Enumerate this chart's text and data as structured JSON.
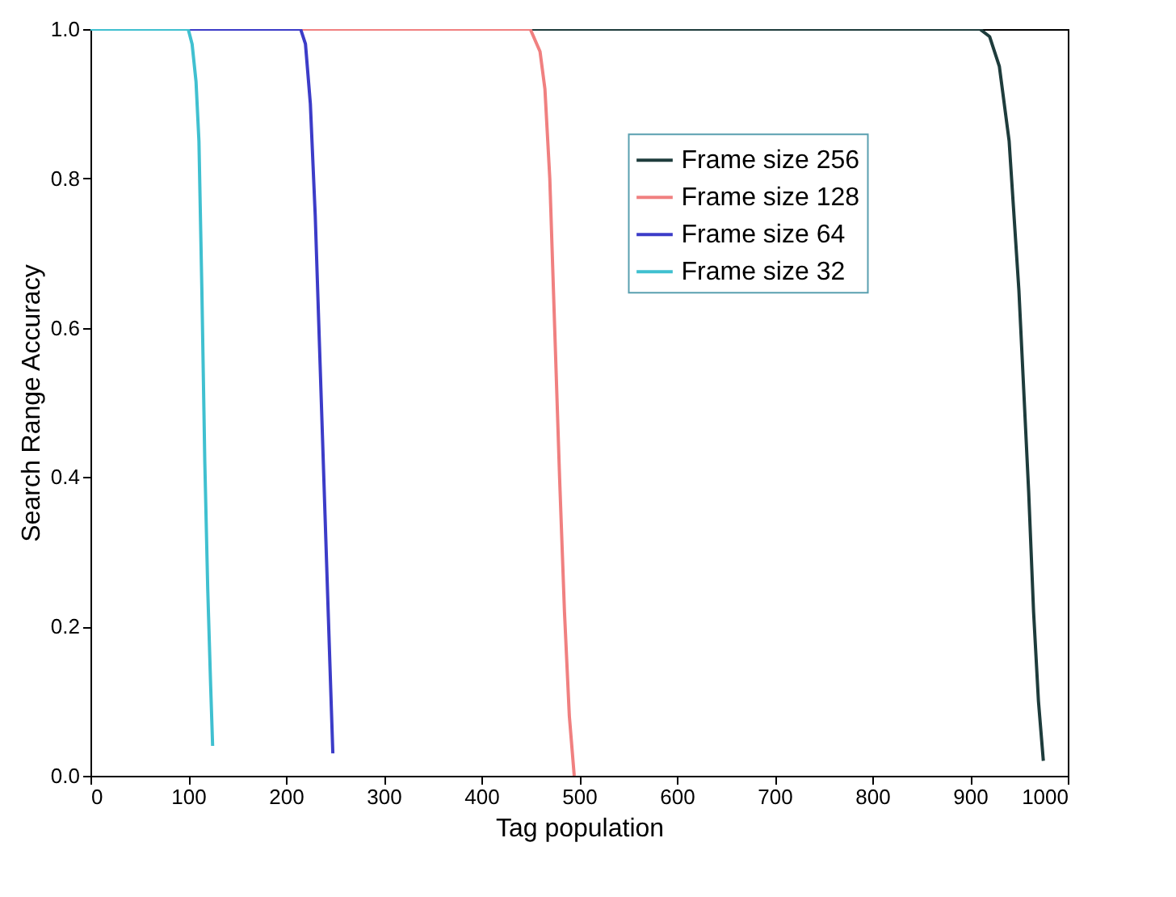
{
  "chart_data": {
    "type": "line",
    "xlabel": "Tag population",
    "ylabel": "Search Range Accuracy",
    "xlim": [
      0,
      1000
    ],
    "xticks": [
      0,
      100,
      200,
      300,
      400,
      500,
      600,
      700,
      800,
      900,
      1000
    ],
    "ylim": [
      0,
      1
    ],
    "yticks": [
      {
        "value": 0,
        "label": "0.0"
      },
      {
        "value": 0.2,
        "label": "0.2"
      },
      {
        "value": 0.4,
        "label": "0.4"
      },
      {
        "value": 0.6,
        "label": "0.6"
      },
      {
        "value": 0.8,
        "label": "0.8"
      },
      {
        "value": 1,
        "label": "1.0"
      }
    ],
    "grid": false,
    "legend": "top right",
    "marker": "none",
    "line_style": "solid",
    "series": [
      {
        "name": "Frame size 256",
        "color": "#1e3c3c",
        "x": [
          0,
          900,
          910,
          920,
          930,
          940,
          950,
          960,
          965,
          970,
          975
        ],
        "values": [
          1,
          1,
          1,
          0.99,
          0.95,
          0.85,
          0.65,
          0.38,
          0.22,
          0.1,
          0.02
        ]
      },
      {
        "name": "Frame size 128",
        "color": "#f08080",
        "x": [
          0,
          440,
          450,
          460,
          465,
          470,
          475,
          480,
          485,
          490,
          495
        ],
        "values": [
          1,
          1,
          1,
          0.97,
          0.92,
          0.8,
          0.6,
          0.4,
          0.22,
          0.08,
          0
        ]
      },
      {
        "name": "Frame size 64",
        "color": "#3c3cc8",
        "x": [
          0,
          210,
          215,
          220,
          225,
          230,
          235,
          240,
          245,
          248
        ],
        "values": [
          1,
          1,
          1,
          0.98,
          0.9,
          0.75,
          0.55,
          0.35,
          0.15,
          0.03
        ]
      },
      {
        "name": "Frame size 32",
        "color": "#40c0d0",
        "x": [
          0,
          100,
          104,
          108,
          111,
          114,
          117,
          120,
          123,
          125
        ],
        "values": [
          1,
          1,
          0.98,
          0.93,
          0.85,
          0.65,
          0.42,
          0.25,
          0.12,
          0.04
        ]
      }
    ]
  }
}
